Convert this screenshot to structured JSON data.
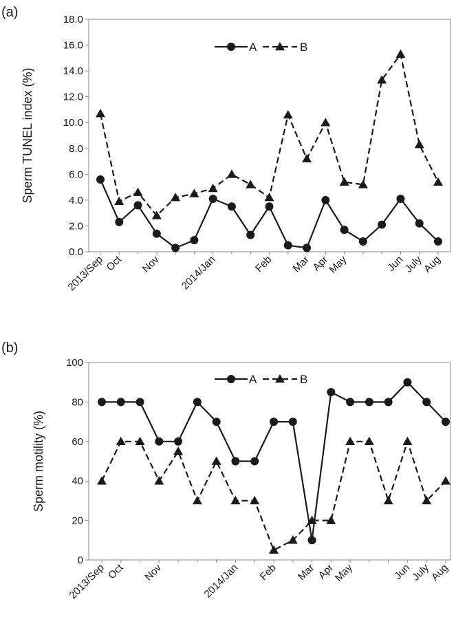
{
  "chart_data": [
    {
      "type": "line",
      "panel_label": "(a)",
      "ylabel": "Sperm TUNEL index (%)",
      "ylim": [
        0,
        18
      ],
      "yticks": [
        "0.0",
        "2.0",
        "4.0",
        "6.0",
        "8.0",
        "10.0",
        "12.0",
        "14.0",
        "16.0",
        "18.0"
      ],
      "x_labels": [
        {
          "index": 0,
          "text": "2013/Sep"
        },
        {
          "index": 1,
          "text": "Oct"
        },
        {
          "index": 3,
          "text": "Nov"
        },
        {
          "index": 6,
          "text": "2014/Jan"
        },
        {
          "index": 9,
          "text": "Feb"
        },
        {
          "index": 11,
          "text": "Mar"
        },
        {
          "index": 12,
          "text": "Apr"
        },
        {
          "index": 13,
          "text": "May"
        },
        {
          "index": 16,
          "text": "Jun"
        },
        {
          "index": 17,
          "text": "July"
        },
        {
          "index": 18,
          "text": "Aug"
        }
      ],
      "legend_position": "top-center",
      "grid": false,
      "series": [
        {
          "name": "A",
          "marker": "circle",
          "dash": "solid",
          "values": [
            5.6,
            2.3,
            3.6,
            1.4,
            0.3,
            0.9,
            4.1,
            3.5,
            1.3,
            3.5,
            0.5,
            0.3,
            4.0,
            1.7,
            0.8,
            2.1,
            4.1,
            2.2,
            0.8
          ]
        },
        {
          "name": "B",
          "marker": "triangle",
          "dash": "dashed",
          "values": [
            10.7,
            3.9,
            4.6,
            2.8,
            4.2,
            4.5,
            4.9,
            6.0,
            5.2,
            4.2,
            10.6,
            7.2,
            10.0,
            5.4,
            5.2,
            13.3,
            15.3,
            8.3,
            5.4
          ]
        }
      ]
    },
    {
      "type": "line",
      "panel_label": "(b)",
      "ylabel": "Sperm motility (%)",
      "ylim": [
        0,
        100
      ],
      "yticks": [
        "0",
        "20",
        "40",
        "60",
        "80",
        "100"
      ],
      "x_labels": [
        {
          "index": 0,
          "text": "2013/Sep"
        },
        {
          "index": 1,
          "text": "Oct"
        },
        {
          "index": 3,
          "text": "Nov"
        },
        {
          "index": 7,
          "text": "2014/Jan"
        },
        {
          "index": 9,
          "text": "Feb"
        },
        {
          "index": 11,
          "text": "Mar"
        },
        {
          "index": 12,
          "text": "Apr"
        },
        {
          "index": 13,
          "text": "May"
        },
        {
          "index": 16,
          "text": "Jun"
        },
        {
          "index": 17,
          "text": "July"
        },
        {
          "index": 18,
          "text": "Aug"
        }
      ],
      "legend_position": "top-center",
      "grid": false,
      "series": [
        {
          "name": "A",
          "marker": "circle",
          "dash": "solid",
          "values": [
            80,
            80,
            80,
            60,
            60,
            80,
            70,
            50,
            50,
            70,
            70,
            10,
            85,
            80,
            80,
            80,
            90,
            80,
            70
          ]
        },
        {
          "name": "B",
          "marker": "triangle",
          "dash": "dashed",
          "values": [
            40,
            60,
            60,
            40,
            55,
            30,
            50,
            30,
            30,
            5,
            10,
            20,
            20,
            60,
            60,
            30,
            60,
            30,
            40
          ]
        }
      ]
    }
  ]
}
